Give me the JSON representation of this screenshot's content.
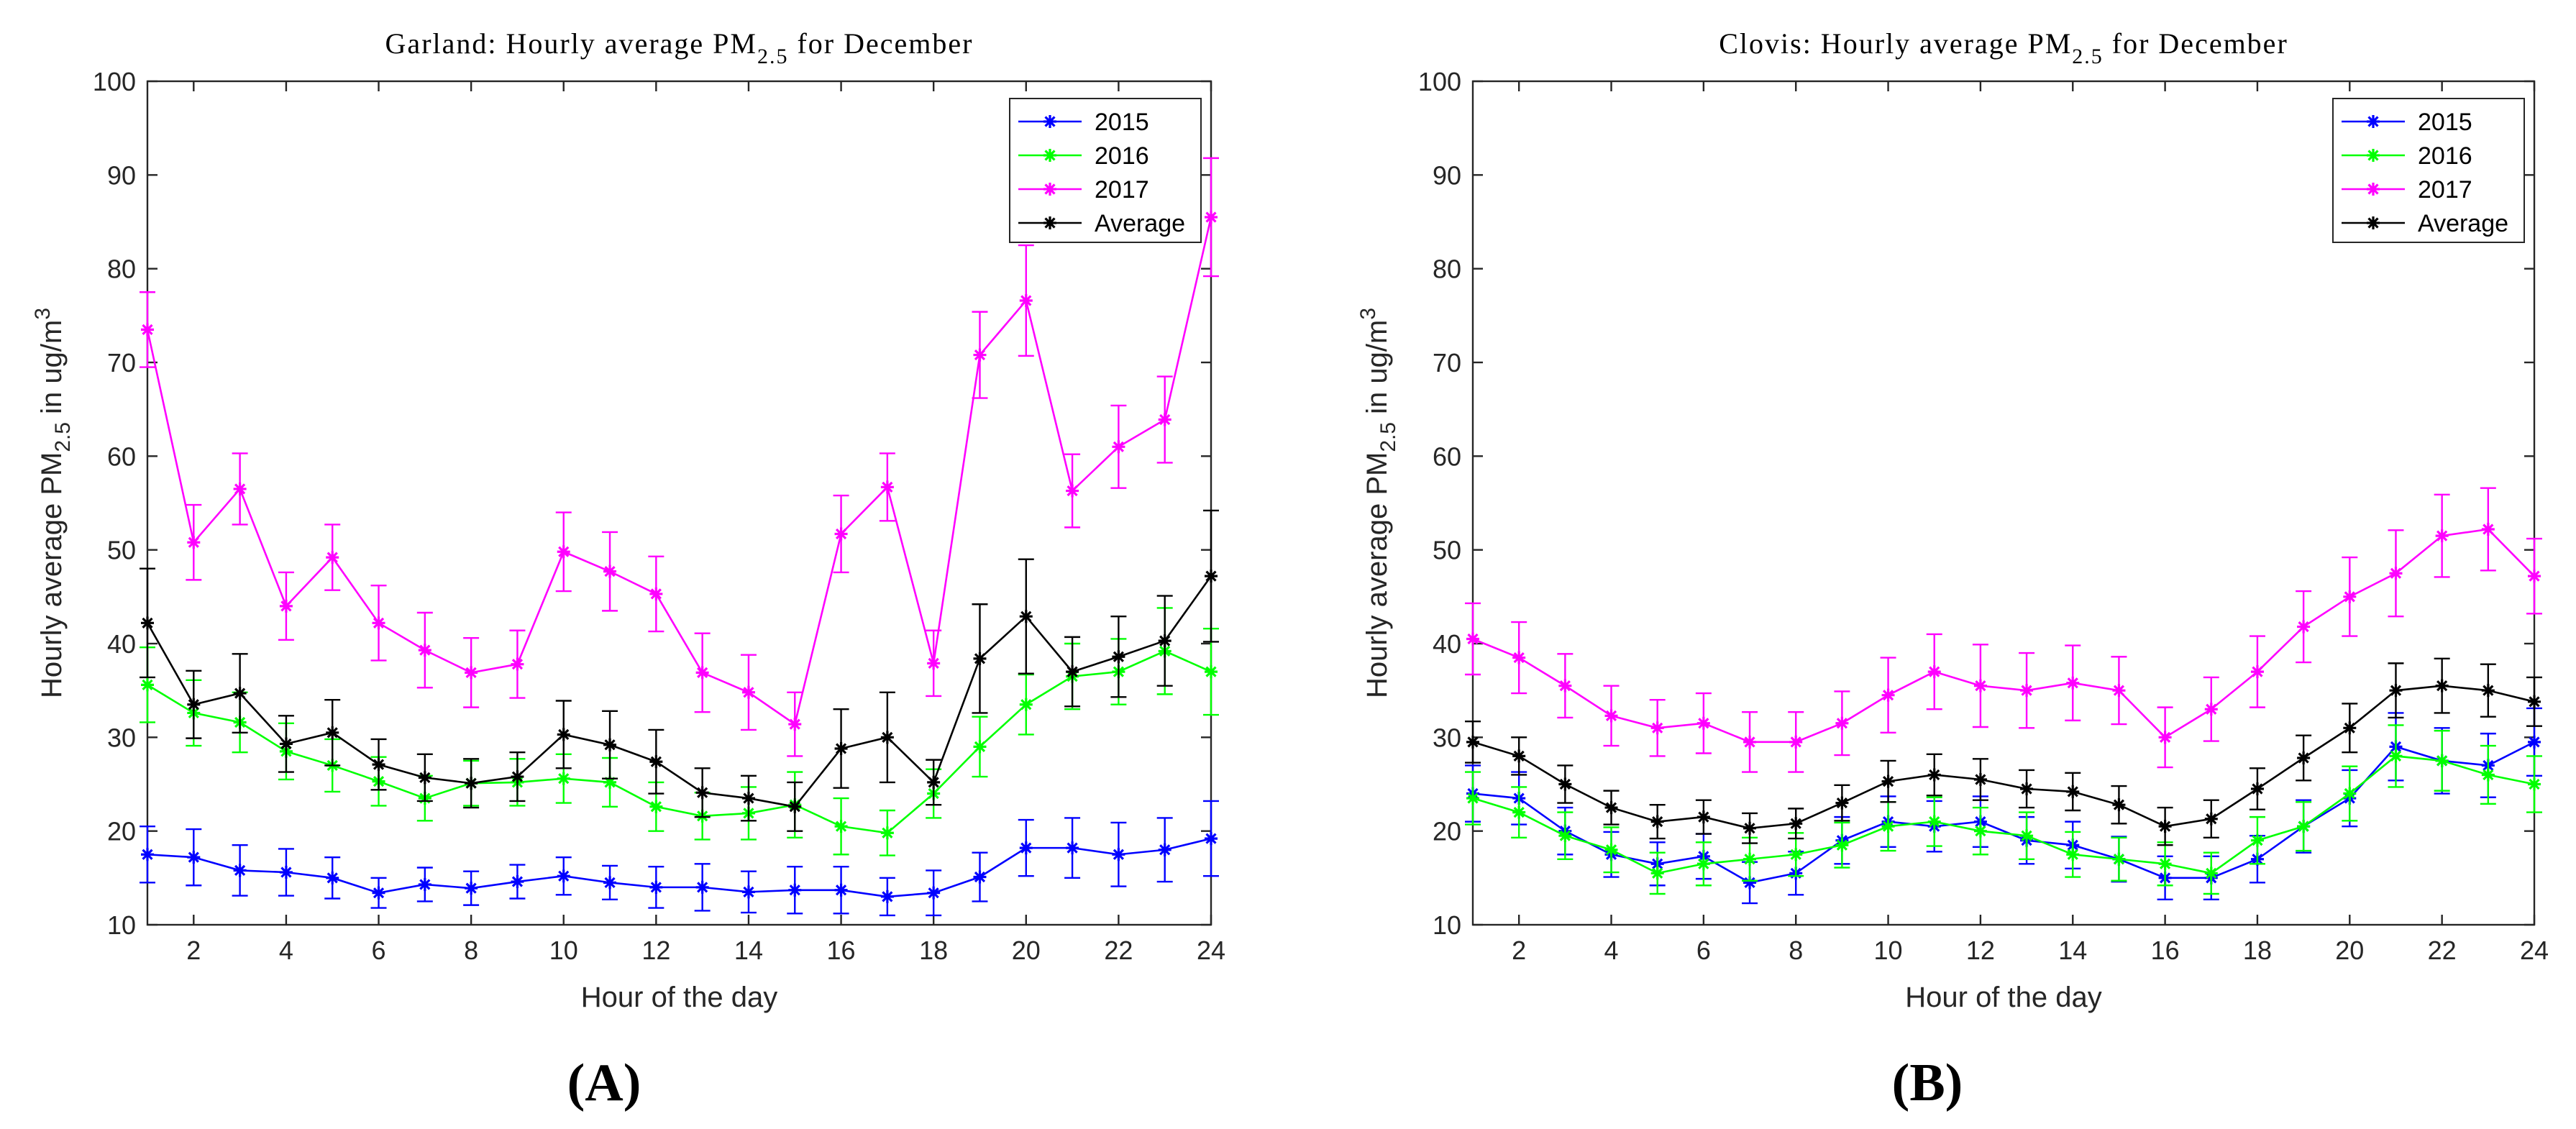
{
  "figure_labels": [
    "(A)",
    "(B)"
  ],
  "chart_data": [
    {
      "type": "line",
      "title_prefix": "Garland: Hourly average PM",
      "title_sub": "2.5",
      "title_suffix": " for December",
      "xlabel": "Hour of the day",
      "ylabel_prefix": "Hourly average PM",
      "ylabel_sub": "2.5",
      "ylabel_mid": " in ug/m",
      "ylabel_sup": "3",
      "xlim": [
        1,
        24
      ],
      "ylim": [
        10,
        100
      ],
      "xticks": [
        2,
        4,
        6,
        8,
        10,
        12,
        14,
        16,
        18,
        20,
        22,
        24
      ],
      "yticks": [
        10,
        20,
        30,
        40,
        50,
        60,
        70,
        80,
        90,
        100
      ],
      "legend_position": "top-right",
      "x": [
        1,
        2,
        3,
        4,
        5,
        6,
        7,
        8,
        9,
        10,
        11,
        12,
        13,
        14,
        15,
        16,
        17,
        18,
        19,
        20,
        21,
        22,
        23,
        24
      ],
      "series": [
        {
          "name": "2015",
          "color": "#0000ff",
          "values": [
            17.5,
            17.2,
            15.8,
            15.6,
            15.0,
            13.4,
            14.3,
            13.9,
            14.6,
            15.2,
            14.5,
            14.0,
            14.0,
            13.5,
            13.7,
            13.7,
            13.0,
            13.4,
            15.1,
            18.2,
            18.2,
            17.5,
            18.0,
            19.2
          ],
          "err": [
            3.0,
            3.0,
            2.7,
            2.5,
            2.2,
            1.6,
            1.8,
            1.8,
            1.8,
            2.0,
            1.8,
            2.2,
            2.5,
            2.2,
            2.5,
            2.5,
            2.0,
            2.4,
            2.6,
            3.0,
            3.2,
            3.4,
            3.4,
            4.0
          ]
        },
        {
          "name": "2016",
          "color": "#00ff00",
          "values": [
            35.6,
            32.6,
            31.6,
            28.5,
            27.0,
            25.3,
            23.5,
            25.1,
            25.2,
            25.6,
            25.2,
            22.6,
            21.6,
            21.9,
            22.8,
            20.5,
            19.8,
            24.0,
            29.0,
            33.5,
            36.5,
            37.0,
            39.2,
            37.0
          ],
          "err": [
            4.0,
            3.5,
            3.2,
            3.0,
            2.8,
            2.6,
            2.4,
            2.4,
            2.5,
            2.6,
            2.6,
            2.6,
            2.5,
            2.8,
            3.5,
            3.0,
            2.4,
            2.6,
            3.2,
            3.2,
            3.5,
            3.5,
            4.6,
            4.6
          ]
        },
        {
          "name": "2017",
          "color": "#ff00ff",
          "values": [
            73.5,
            50.8,
            56.5,
            44.0,
            49.2,
            42.2,
            39.3,
            36.9,
            37.8,
            49.8,
            47.7,
            45.3,
            36.9,
            34.8,
            31.4,
            51.7,
            56.7,
            37.9,
            70.8,
            76.6,
            56.3,
            61.0,
            63.9,
            85.5
          ],
          "err": [
            4.0,
            4.0,
            3.8,
            3.6,
            3.5,
            4.0,
            4.0,
            3.7,
            3.6,
            4.2,
            4.2,
            4.0,
            4.2,
            4.0,
            3.4,
            4.1,
            3.6,
            3.5,
            4.6,
            5.9,
            3.9,
            4.4,
            4.6,
            6.3
          ]
        },
        {
          "name": "Average",
          "color": "#000000",
          "values": [
            42.2,
            33.5,
            34.7,
            29.3,
            30.5,
            27.1,
            25.7,
            25.1,
            25.8,
            30.3,
            29.2,
            27.4,
            24.1,
            23.5,
            22.6,
            28.8,
            30.0,
            25.2,
            38.4,
            42.9,
            37.0,
            38.6,
            40.3,
            47.2
          ],
          "err": [
            5.8,
            3.6,
            4.2,
            3.0,
            3.5,
            2.7,
            2.5,
            2.6,
            2.6,
            3.6,
            3.6,
            3.4,
            2.6,
            2.4,
            2.6,
            4.2,
            4.8,
            2.4,
            5.8,
            6.1,
            3.7,
            4.3,
            4.8,
            7.0
          ]
        }
      ]
    },
    {
      "type": "line",
      "title_prefix": "Clovis: Hourly average PM",
      "title_sub": "2.5",
      "title_suffix": " for December",
      "xlabel": "Hour of the day",
      "ylabel_prefix": "Hourly average PM",
      "ylabel_sub": "2.5",
      "ylabel_mid": " in ug/m",
      "ylabel_sup": "3",
      "xlim": [
        1,
        24
      ],
      "ylim": [
        10,
        100
      ],
      "xticks": [
        2,
        4,
        6,
        8,
        10,
        12,
        14,
        16,
        18,
        20,
        22,
        24
      ],
      "yticks": [
        10,
        20,
        30,
        40,
        50,
        60,
        70,
        80,
        90,
        100
      ],
      "legend_position": "top-right",
      "x": [
        1,
        2,
        3,
        4,
        5,
        6,
        7,
        8,
        9,
        10,
        11,
        12,
        13,
        14,
        15,
        16,
        17,
        18,
        19,
        20,
        21,
        22,
        23,
        24
      ],
      "series": [
        {
          "name": "2015",
          "color": "#0000ff",
          "values": [
            24.0,
            23.5,
            20.0,
            17.5,
            16.5,
            17.3,
            14.5,
            15.5,
            19.0,
            21.0,
            20.5,
            21.0,
            19.0,
            18.5,
            17.0,
            15.0,
            15.0,
            17.0,
            20.5,
            23.5,
            29.0,
            27.5,
            27.0,
            29.5
          ],
          "err": [
            3.0,
            2.8,
            2.5,
            2.4,
            2.3,
            2.4,
            2.2,
            2.3,
            2.5,
            2.7,
            2.7,
            2.7,
            2.5,
            2.5,
            2.4,
            2.3,
            2.3,
            2.5,
            2.8,
            3.0,
            3.6,
            3.5,
            3.4,
            3.6
          ]
        },
        {
          "name": "2016",
          "color": "#00ff00",
          "values": [
            23.5,
            22.0,
            19.5,
            18.0,
            15.5,
            16.5,
            17.0,
            17.5,
            18.5,
            20.5,
            21.0,
            20.0,
            19.5,
            17.5,
            17.0,
            16.5,
            15.5,
            19.0,
            20.5,
            24.0,
            28.0,
            27.5,
            26.0,
            25.0
          ],
          "err": [
            2.8,
            2.7,
            2.5,
            2.4,
            2.2,
            2.3,
            2.3,
            2.3,
            2.4,
            2.6,
            2.6,
            2.5,
            2.5,
            2.4,
            2.3,
            2.3,
            2.2,
            2.5,
            2.6,
            2.9,
            3.3,
            3.2,
            3.1,
            3.0
          ]
        },
        {
          "name": "2017",
          "color": "#ff00ff",
          "values": [
            40.5,
            38.5,
            35.5,
            32.3,
            31.0,
            31.5,
            29.5,
            29.5,
            31.5,
            34.5,
            37.0,
            35.5,
            35.0,
            35.8,
            35.0,
            30.0,
            33.0,
            37.0,
            41.8,
            45.0,
            47.5,
            51.5,
            52.2,
            47.2
          ],
          "err": [
            3.8,
            3.8,
            3.4,
            3.2,
            3.0,
            3.2,
            3.2,
            3.2,
            3.4,
            4.0,
            4.0,
            4.4,
            4.0,
            4.0,
            3.6,
            3.2,
            3.4,
            3.8,
            3.8,
            4.2,
            4.6,
            4.4,
            4.4,
            4.0
          ]
        },
        {
          "name": "Average",
          "color": "#000000",
          "values": [
            29.5,
            28.0,
            25.0,
            22.5,
            21.0,
            21.5,
            20.3,
            20.8,
            23.0,
            25.3,
            26.0,
            25.5,
            24.5,
            24.2,
            22.8,
            20.5,
            21.3,
            24.5,
            27.8,
            31.0,
            35.0,
            35.5,
            35.0,
            33.8
          ],
          "err": [
            2.2,
            2.0,
            2.0,
            1.8,
            1.8,
            1.8,
            1.6,
            1.6,
            1.9,
            2.2,
            2.2,
            2.2,
            2.0,
            2.0,
            2.0,
            2.0,
            2.0,
            2.2,
            2.4,
            2.6,
            2.9,
            2.9,
            2.8,
            2.6
          ]
        }
      ]
    }
  ]
}
